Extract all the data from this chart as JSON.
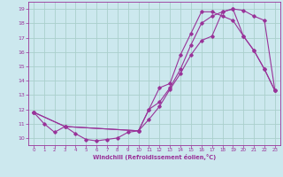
{
  "xlabel": "Windchill (Refroidissement éolien,°C)",
  "bg_color": "#cce8ee",
  "grid_color": "#aacfcc",
  "line_color": "#993399",
  "xlim": [
    -0.5,
    23.5
  ],
  "ylim": [
    9.5,
    19.5
  ],
  "xticks": [
    0,
    1,
    2,
    3,
    4,
    5,
    6,
    7,
    8,
    9,
    10,
    11,
    12,
    13,
    14,
    15,
    16,
    17,
    18,
    19,
    20,
    21,
    22,
    23
  ],
  "yticks": [
    10,
    11,
    12,
    13,
    14,
    15,
    16,
    17,
    18,
    19
  ],
  "line1_x": [
    0,
    1,
    2,
    3,
    4,
    5,
    6,
    7,
    8,
    9,
    10,
    11,
    12,
    13,
    14,
    15,
    16,
    17,
    18,
    19,
    20,
    21,
    22,
    23
  ],
  "line1_y": [
    11.8,
    11.0,
    10.4,
    10.8,
    10.3,
    9.9,
    9.8,
    9.9,
    10.0,
    10.4,
    10.5,
    12.0,
    13.5,
    13.8,
    15.8,
    17.3,
    18.8,
    18.8,
    18.5,
    18.2,
    17.1,
    16.1,
    14.8,
    13.3
  ],
  "line2_x": [
    0,
    3,
    10,
    11,
    12,
    13,
    14,
    15,
    16,
    17,
    18,
    19,
    20,
    21,
    22,
    23
  ],
  "line2_y": [
    11.8,
    10.8,
    10.5,
    11.3,
    12.2,
    13.4,
    14.5,
    15.8,
    16.8,
    17.1,
    18.8,
    19.0,
    18.9,
    18.5,
    18.2,
    13.3
  ],
  "line3_x": [
    0,
    3,
    10,
    11,
    12,
    13,
    14,
    15,
    16,
    17,
    18,
    19,
    20,
    21,
    22,
    23
  ],
  "line3_y": [
    11.8,
    10.8,
    10.5,
    12.0,
    12.5,
    13.5,
    14.8,
    16.5,
    18.0,
    18.5,
    18.8,
    19.0,
    17.1,
    16.1,
    14.8,
    13.3
  ]
}
